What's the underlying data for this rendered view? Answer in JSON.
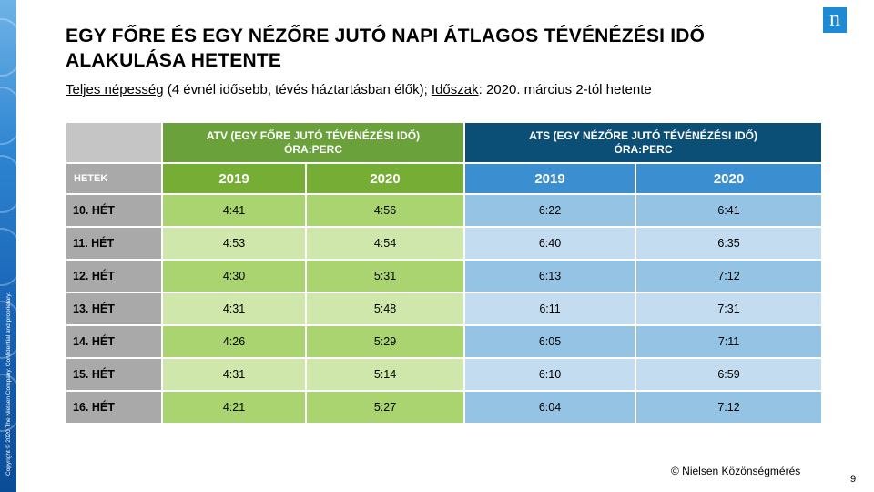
{
  "title": "EGY FŐRE ÉS EGY NÉZŐRE JUTÓ NAPI ÁTLAGOS TÉVÉNÉZÉSI IDŐ ALAKULÁSA HETENTE",
  "subtitle": {
    "population_label": "Teljes népesség",
    "population_detail": " (4 évnél idősebb, tévés háztartásban  élők); ",
    "period_label": "Időszak",
    "period_detail": ": 2020. március 2-tól hetente"
  },
  "table": {
    "atv_header_line1": "ATV (EGY FŐRE JUTÓ TÉVÉNÉZÉSI IDŐ)",
    "atv_header_line2": "ÓRA:PERC",
    "ats_header_line1": "ATS (EGY NÉZŐRE JUTÓ TÉVÉNÉZÉSI IDŐ)",
    "ats_header_line2": "ÓRA:PERC",
    "weeks_label": "HETEK",
    "years": [
      "2019",
      "2020",
      "2019",
      "2020"
    ],
    "rows": [
      {
        "week": "10. HÉT",
        "atv2019": "4:41",
        "atv2020": "4:56",
        "ats2019": "6:22",
        "ats2020": "6:41"
      },
      {
        "week": "11. HÉT",
        "atv2019": "4:53",
        "atv2020": "4:54",
        "ats2019": "6:40",
        "ats2020": "6:35"
      },
      {
        "week": "12. HÉT",
        "atv2019": "4:30",
        "atv2020": "5:31",
        "ats2019": "6:13",
        "ats2020": "7:12"
      },
      {
        "week": "13. HÉT",
        "atv2019": "4:31",
        "atv2020": "5:48",
        "ats2019": "6:11",
        "ats2020": "7:31"
      },
      {
        "week": "14. HÉT",
        "atv2019": "4:26",
        "atv2020": "5:29",
        "ats2019": "6:05",
        "ats2020": "7:11"
      },
      {
        "week": "15. HÉT",
        "atv2019": "4:31",
        "atv2020": "5:14",
        "ats2019": "6:10",
        "ats2020": "6:59"
      },
      {
        "week": "16. HÉT",
        "atv2019": "4:21",
        "atv2020": "5:27",
        "ats2019": "6:04",
        "ats2020": "7:12"
      }
    ]
  },
  "footer": "© Nielsen Közönségmérés",
  "page_number": "9",
  "copyright": "Copyright © 2020 The Nielsen Company. Confidential and proprietary.",
  "logo_letter": "n",
  "colors": {
    "atv_header": "#6aa13a",
    "ats_header": "#0b4f76",
    "atv_year": "#75ad35",
    "ats_year": "#3b8fd0",
    "row_label": "#a9a9a9"
  }
}
